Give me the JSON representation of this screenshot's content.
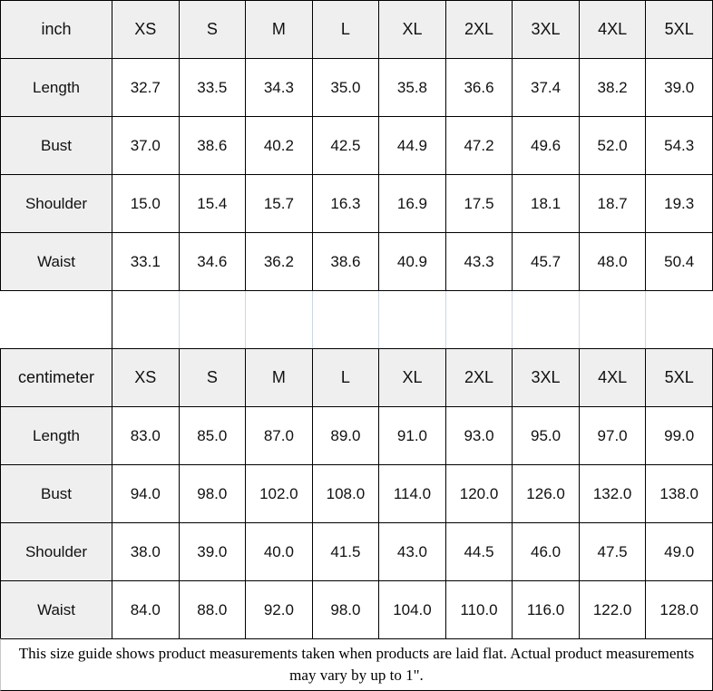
{
  "inch_table": {
    "unit": "inch",
    "sizes": [
      "XS",
      "S",
      "M",
      "L",
      "XL",
      "2XL",
      "3XL",
      "4XL",
      "5XL"
    ],
    "rows": [
      {
        "label": "Length",
        "values": [
          "32.7",
          "33.5",
          "34.3",
          "35.0",
          "35.8",
          "36.6",
          "37.4",
          "38.2",
          "39.0"
        ]
      },
      {
        "label": "Bust",
        "values": [
          "37.0",
          "38.6",
          "40.2",
          "42.5",
          "44.9",
          "47.2",
          "49.6",
          "52.0",
          "54.3"
        ]
      },
      {
        "label": "Shoulder",
        "values": [
          "15.0",
          "15.4",
          "15.7",
          "16.3",
          "16.9",
          "17.5",
          "18.1",
          "18.7",
          "19.3"
        ]
      },
      {
        "label": "Waist",
        "values": [
          "33.1",
          "34.6",
          "36.2",
          "38.6",
          "40.9",
          "43.3",
          "45.7",
          "48.0",
          "50.4"
        ]
      }
    ]
  },
  "cm_table": {
    "unit": "centimeter",
    "sizes": [
      "XS",
      "S",
      "M",
      "L",
      "XL",
      "2XL",
      "3XL",
      "4XL",
      "5XL"
    ],
    "rows": [
      {
        "label": "Length",
        "values": [
          "83.0",
          "85.0",
          "87.0",
          "89.0",
          "91.0",
          "93.0",
          "95.0",
          "97.0",
          "99.0"
        ]
      },
      {
        "label": "Bust",
        "values": [
          "94.0",
          "98.0",
          "102.0",
          "108.0",
          "114.0",
          "120.0",
          "126.0",
          "132.0",
          "138.0"
        ]
      },
      {
        "label": "Shoulder",
        "values": [
          "38.0",
          "39.0",
          "40.0",
          "41.5",
          "43.0",
          "44.5",
          "46.0",
          "47.5",
          "49.0"
        ]
      },
      {
        "label": "Waist",
        "values": [
          "84.0",
          "88.0",
          "92.0",
          "98.0",
          "104.0",
          "110.0",
          "116.0",
          "122.0",
          "128.0"
        ]
      }
    ]
  },
  "footer": {
    "note": "This size guide shows product measurements taken when products are laid flat. Actual product measurements may vary by up to 1\"."
  },
  "colors": {
    "header_bg": "#efefef",
    "grid_border": "#000000",
    "spacer_separator": "#ccd6e2",
    "cell_bg": "#ffffff",
    "text": "#111111"
  },
  "chart_data": [
    {
      "type": "table",
      "title": "inch",
      "columns": [
        "inch",
        "XS",
        "S",
        "M",
        "L",
        "XL",
        "2XL",
        "3XL",
        "4XL",
        "5XL"
      ],
      "rows": [
        [
          "Length",
          32.7,
          33.5,
          34.3,
          35.0,
          35.8,
          36.6,
          37.4,
          38.2,
          39.0
        ],
        [
          "Bust",
          37.0,
          38.6,
          40.2,
          42.5,
          44.9,
          47.2,
          49.6,
          52.0,
          54.3
        ],
        [
          "Shoulder",
          15.0,
          15.4,
          15.7,
          16.3,
          16.9,
          17.5,
          18.1,
          18.7,
          19.3
        ],
        [
          "Waist",
          33.1,
          34.6,
          36.2,
          38.6,
          40.9,
          43.3,
          45.7,
          48.0,
          50.4
        ]
      ]
    },
    {
      "type": "table",
      "title": "centimeter",
      "columns": [
        "centimeter",
        "XS",
        "S",
        "M",
        "L",
        "XL",
        "2XL",
        "3XL",
        "4XL",
        "5XL"
      ],
      "rows": [
        [
          "Length",
          83.0,
          85.0,
          87.0,
          89.0,
          91.0,
          93.0,
          95.0,
          97.0,
          99.0
        ],
        [
          "Bust",
          94.0,
          98.0,
          102.0,
          108.0,
          114.0,
          120.0,
          126.0,
          132.0,
          138.0
        ],
        [
          "Shoulder",
          38.0,
          39.0,
          40.0,
          41.5,
          43.0,
          44.5,
          46.0,
          47.5,
          49.0
        ],
        [
          "Waist",
          84.0,
          88.0,
          92.0,
          98.0,
          104.0,
          110.0,
          116.0,
          122.0,
          128.0
        ]
      ]
    }
  ]
}
